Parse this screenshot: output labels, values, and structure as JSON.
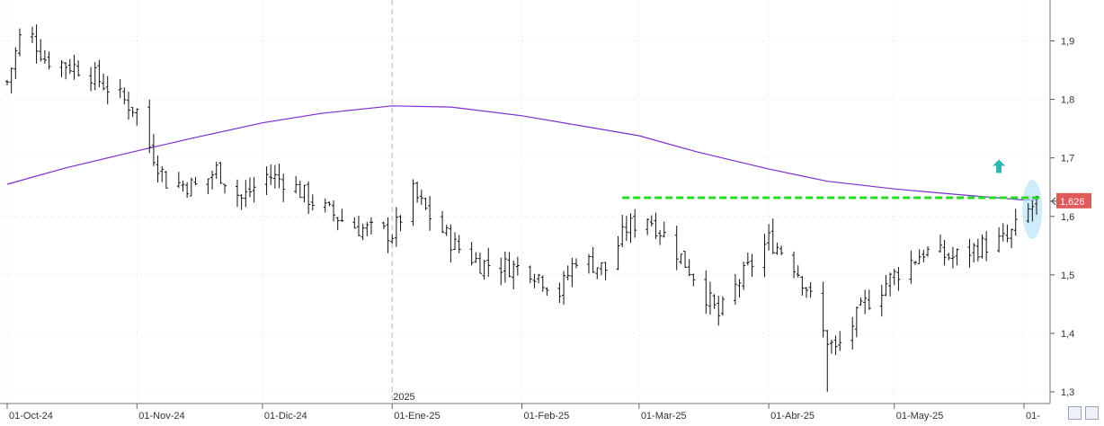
{
  "chart_data": {
    "type": "ohlc-bar",
    "y_axis": {
      "ticks": [
        "1,9",
        "1,8",
        "1,7",
        "1,6",
        "1,5",
        "1,4",
        "1,3"
      ],
      "tick_values": [
        1.9,
        1.8,
        1.7,
        1.6,
        1.5,
        1.4,
        1.3
      ],
      "range": [
        1.28,
        1.97
      ],
      "side": "right"
    },
    "x_axis": {
      "labels": [
        "01-Oct-24",
        "01-Nov-24",
        "01-Dic-24",
        "01-Ene-25",
        "01-Feb-25",
        "01-Mar-25",
        "01-Abr-25",
        "01-May-25",
        "01-"
      ],
      "year_marker": "2025",
      "start": "2024-10-01",
      "end": "2025-06-04"
    },
    "last_price": {
      "label": "1,626",
      "value": 1.626,
      "color": "#e05a5a"
    },
    "resistance_line": {
      "value": 1.632,
      "from": "2025-02-25",
      "to": "2025-06-04",
      "color": "#22dd22",
      "style": "dashed"
    },
    "moving_average": {
      "color": "#7b2fd0",
      "points": [
        [
          "2024-10-01",
          1.655
        ],
        [
          "2024-10-15",
          1.683
        ],
        [
          "2024-11-01",
          1.712
        ],
        [
          "2024-11-15",
          1.735
        ],
        [
          "2024-12-01",
          1.76
        ],
        [
          "2024-12-15",
          1.776
        ],
        [
          "2025-01-01",
          1.789
        ],
        [
          "2025-01-15",
          1.787
        ],
        [
          "2025-02-01",
          1.772
        ],
        [
          "2025-02-15",
          1.755
        ],
        [
          "2025-03-01",
          1.738
        ],
        [
          "2025-03-15",
          1.71
        ],
        [
          "2025-04-01",
          1.681
        ],
        [
          "2025-04-15",
          1.66
        ],
        [
          "2025-05-01",
          1.647
        ],
        [
          "2025-05-15",
          1.638
        ],
        [
          "2025-06-01",
          1.628
        ],
        [
          "2025-06-04",
          1.628
        ]
      ]
    },
    "anchors": [
      [
        "2024-10-01",
        1.83
      ],
      [
        "2024-10-05",
        1.93
      ],
      [
        "2024-10-10",
        1.87
      ],
      [
        "2024-10-20",
        1.85
      ],
      [
        "2024-11-01",
        1.78
      ],
      [
        "2024-11-04",
        1.72
      ],
      [
        "2024-11-08",
        1.66
      ],
      [
        "2024-11-16",
        1.65
      ],
      [
        "2024-11-20",
        1.68
      ],
      [
        "2024-11-26",
        1.63
      ],
      [
        "2024-12-02",
        1.67
      ],
      [
        "2024-12-07",
        1.66
      ],
      [
        "2024-12-14",
        1.62
      ],
      [
        "2024-12-21",
        1.59
      ],
      [
        "2024-12-24",
        1.58
      ],
      [
        "2025-01-01",
        1.57
      ],
      [
        "2025-01-06",
        1.64
      ],
      [
        "2025-01-10",
        1.6
      ],
      [
        "2025-01-16",
        1.55
      ],
      [
        "2025-01-22",
        1.52
      ],
      [
        "2025-02-03",
        1.51
      ],
      [
        "2025-02-10",
        1.47
      ],
      [
        "2025-02-14",
        1.53
      ],
      [
        "2025-02-21",
        1.51
      ],
      [
        "2025-02-26",
        1.58
      ],
      [
        "2025-03-03",
        1.6
      ],
      [
        "2025-03-08",
        1.56
      ],
      [
        "2025-03-14",
        1.5
      ],
      [
        "2025-03-20",
        1.43
      ],
      [
        "2025-03-25",
        1.49
      ],
      [
        "2025-04-01",
        1.56
      ],
      [
        "2025-04-06",
        1.53
      ],
      [
        "2025-04-10",
        1.48
      ],
      [
        "2025-04-14",
        1.4
      ],
      [
        "2025-04-17",
        1.37
      ],
      [
        "2025-04-24",
        1.45
      ],
      [
        "2025-05-01",
        1.5
      ],
      [
        "2025-05-08",
        1.54
      ],
      [
        "2025-05-15",
        1.53
      ],
      [
        "2025-05-22",
        1.55
      ],
      [
        "2025-05-28",
        1.56
      ],
      [
        "2025-06-01",
        1.6
      ],
      [
        "2025-06-04",
        1.626
      ]
    ],
    "spikes": [
      [
        "2025-04-15",
        1.3
      ],
      [
        "2025-04-18",
        1.37
      ]
    ],
    "annotations": {
      "up_arrow": {
        "date": "2025-05-26",
        "value": 1.685,
        "color": "#2ab8b4"
      },
      "highlight_ellipse": {
        "date": "2025-06-03",
        "value": 1.612,
        "color": "#bfe6f8"
      }
    },
    "grid": "dotted",
    "divider_line_at": "2025-01-01"
  }
}
